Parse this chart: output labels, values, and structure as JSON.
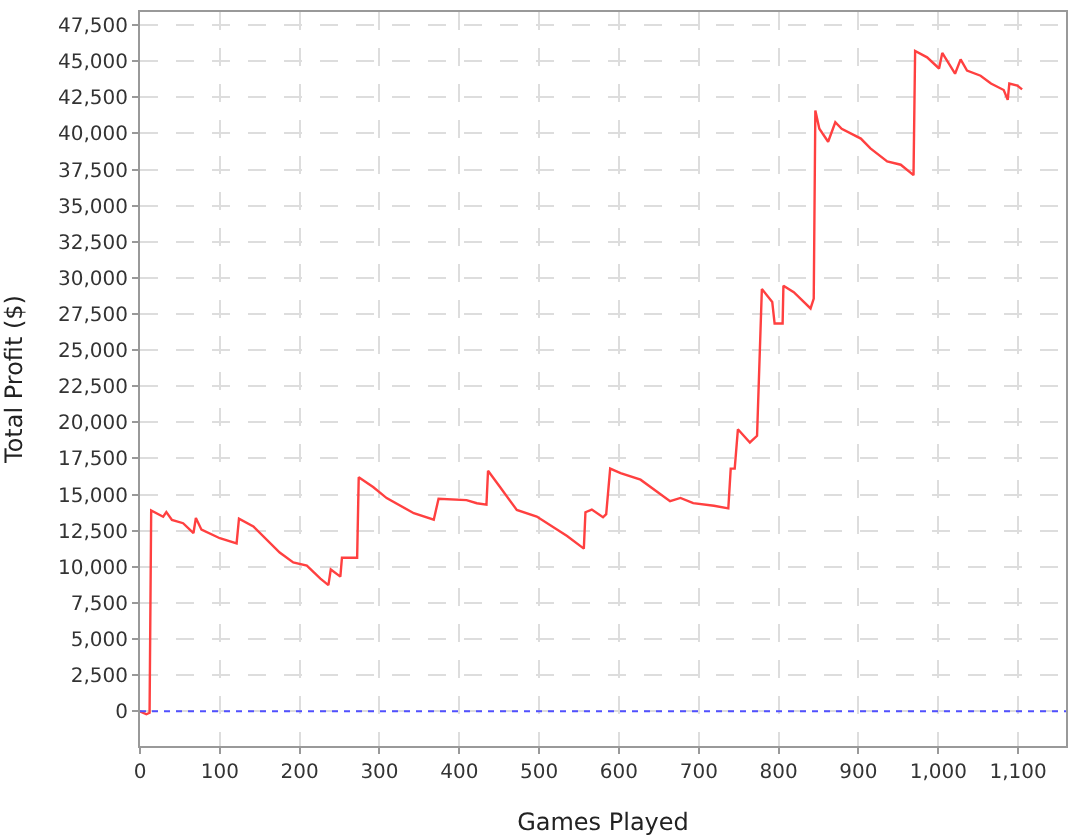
{
  "chart_data": {
    "type": "line",
    "xlabel": "Games Played",
    "ylabel": "Total Profit ($)",
    "xlim": [
      0,
      1160
    ],
    "ylim": [
      -2400,
      48400
    ],
    "xticks": [
      0,
      100,
      200,
      300,
      400,
      500,
      600,
      700,
      800,
      900,
      {
        "value": 1000,
        "label": "1,000"
      },
      {
        "value": 1100,
        "label": "1,100"
      }
    ],
    "yticks": [
      0,
      {
        "value": 2500,
        "label": "2,500"
      },
      {
        "value": 5000,
        "label": "5,000"
      },
      {
        "value": 7500,
        "label": "7,500"
      },
      {
        "value": 10000,
        "label": "10,000"
      },
      {
        "value": 12500,
        "label": "12,500"
      },
      {
        "value": 15000,
        "label": "15,000"
      },
      {
        "value": 17500,
        "label": "17,500"
      },
      {
        "value": 20000,
        "label": "20,000"
      },
      {
        "value": 22500,
        "label": "22,500"
      },
      {
        "value": 25000,
        "label": "25,000"
      },
      {
        "value": 27500,
        "label": "27,500"
      },
      {
        "value": 30000,
        "label": "30,000"
      },
      {
        "value": 32500,
        "label": "32,500"
      },
      {
        "value": 35000,
        "label": "35,000"
      },
      {
        "value": 37500,
        "label": "37,500"
      },
      {
        "value": 40000,
        "label": "40,000"
      },
      {
        "value": 42500,
        "label": "42,500"
      },
      {
        "value": 45000,
        "label": "45,000"
      },
      {
        "value": 47500,
        "label": "47,500"
      }
    ],
    "grid": true,
    "legend": false,
    "marker": "none",
    "line_style": "solid",
    "ref_lines": [
      {
        "axis": "y",
        "value": 0,
        "label": null,
        "color": "#5050ff",
        "line_style": "dotted"
      }
    ],
    "series": [
      {
        "color": "#ff4040",
        "x": [
          0,
          8,
          12,
          14,
          29,
          33,
          40,
          54,
          67,
          70,
          77,
          100,
          121,
          124,
          142,
          175,
          192,
          209,
          226,
          236,
          239,
          251,
          253,
          272,
          274,
          292,
          309,
          343,
          368,
          374,
          409,
          422,
          434,
          436,
          451,
          472,
          497,
          535,
          556,
          558,
          566,
          580,
          584,
          589,
          602,
          627,
          664,
          677,
          693,
          719,
          737,
          740,
          745,
          749,
          764,
          773,
          779,
          792,
          795,
          805,
          806,
          819,
          840,
          844,
          846,
          851,
          862,
          871,
          879,
          903,
          915,
          936,
          953,
          969,
          971,
          986,
          1001,
          1005,
          1021,
          1028,
          1036,
          1053,
          1066,
          1082,
          1087,
          1089,
          1099,
          1105
        ],
        "values": [
          0,
          -200,
          -100,
          13900,
          13470,
          13790,
          13250,
          13020,
          12340,
          13380,
          12570,
          11980,
          11620,
          13340,
          12800,
          10990,
          10310,
          10080,
          9180,
          8730,
          9820,
          9320,
          10630,
          10630,
          16200,
          15520,
          14760,
          13710,
          13260,
          14710,
          14620,
          14400,
          14300,
          16650,
          15520,
          13940,
          13480,
          12130,
          11260,
          13780,
          13960,
          13430,
          13650,
          16800,
          16480,
          16030,
          14550,
          14770,
          14410,
          14230,
          14050,
          16800,
          16800,
          19520,
          18610,
          19070,
          29230,
          28330,
          26840,
          26840,
          29460,
          29010,
          27880,
          28560,
          41580,
          40320,
          39420,
          40770,
          40320,
          39640,
          38960,
          38060,
          37830,
          37110,
          45700,
          45260,
          44490,
          45570,
          44130,
          45120,
          44350,
          43990,
          43450,
          43000,
          42320,
          43450,
          43310,
          43040
        ]
      }
    ]
  }
}
